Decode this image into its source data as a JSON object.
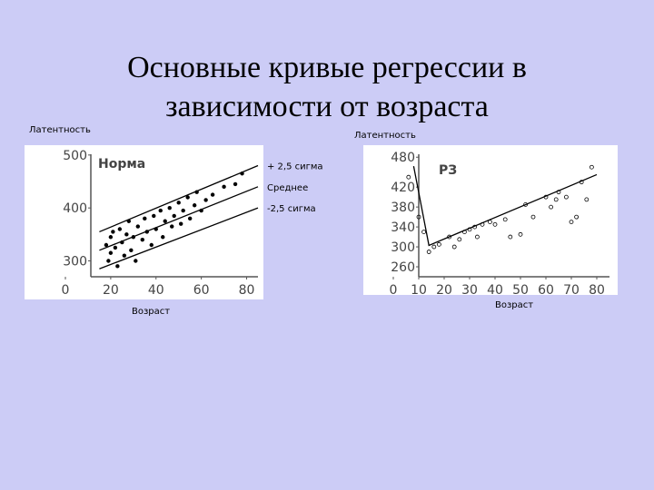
{
  "title": [
    "Основные кривые регрессии в",
    "зависимости от возраста"
  ],
  "chart_data": [
    {
      "type": "scatter",
      "y_label": "Латентность",
      "x_label": "Возраст",
      "annotation": "Норма",
      "xlim": [
        0,
        85
      ],
      "ylim": [
        270,
        510
      ],
      "xticks": [
        0,
        20,
        40,
        60,
        80
      ],
      "yticks": [
        300,
        400,
        500
      ],
      "series": [
        {
          "style": "markers",
          "marker": "filled",
          "color": "#000000",
          "x": [
            18,
            19,
            20,
            20,
            21,
            22,
            23,
            24,
            25,
            26,
            27,
            28,
            29,
            30,
            31,
            32,
            34,
            35,
            36,
            38,
            39,
            40,
            42,
            43,
            44,
            46,
            47,
            48,
            50,
            51,
            52,
            54,
            55,
            57,
            58,
            60,
            62,
            65,
            70,
            75,
            78
          ],
          "values": [
            330,
            300,
            345,
            315,
            355,
            325,
            290,
            360,
            335,
            310,
            350,
            375,
            320,
            345,
            300,
            365,
            340,
            380,
            355,
            330,
            385,
            360,
            395,
            345,
            375,
            400,
            365,
            385,
            410,
            370,
            395,
            420,
            380,
            405,
            430,
            395,
            415,
            425,
            440,
            445,
            465
          ]
        },
        {
          "name": "+ 2,5 сигма",
          "style": "line",
          "color": "#000000",
          "x": [
            15,
            85
          ],
          "values": [
            355,
            480
          ]
        },
        {
          "name": "Среднее",
          "style": "line",
          "color": "#000000",
          "x": [
            15,
            85
          ],
          "values": [
            320,
            440
          ]
        },
        {
          "name": "-2,5 сигма",
          "style": "line",
          "color": "#000000",
          "x": [
            15,
            85
          ],
          "values": [
            285,
            400
          ]
        }
      ]
    },
    {
      "type": "scatter",
      "y_label": "Латентность",
      "x_label": "Возраст",
      "annotation": "РЗ",
      "xlim": [
        0,
        85
      ],
      "ylim": [
        240,
        495
      ],
      "xticks": [
        0,
        10,
        20,
        30,
        40,
        50,
        60,
        70,
        80
      ],
      "yticks": [
        260,
        300,
        340,
        380,
        420,
        480
      ],
      "series": [
        {
          "style": "markers",
          "marker": "open",
          "color": "#000000",
          "x": [
            6,
            10,
            12,
            14,
            16,
            18,
            22,
            24,
            26,
            28,
            30,
            32,
            33,
            35,
            38,
            40,
            44,
            46,
            50,
            52,
            55,
            60,
            62,
            64,
            65,
            68,
            70,
            72,
            74,
            76,
            78
          ],
          "values": [
            440,
            360,
            330,
            290,
            300,
            305,
            320,
            300,
            315,
            330,
            335,
            340,
            320,
            345,
            350,
            345,
            355,
            320,
            325,
            385,
            360,
            400,
            380,
            395,
            410,
            400,
            350,
            360,
            430,
            395,
            460
          ]
        },
        {
          "style": "line",
          "color": "#000000",
          "x": [
            8,
            14,
            80
          ],
          "values": [
            462,
            303,
            445
          ]
        }
      ]
    }
  ]
}
